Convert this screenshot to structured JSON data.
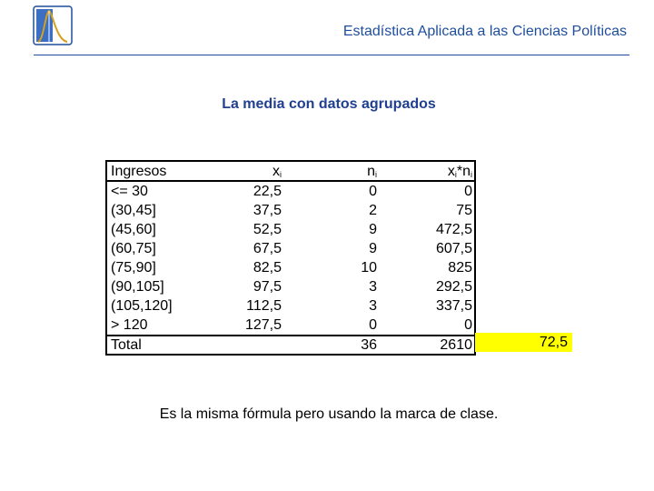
{
  "header": {
    "title": "Estadística Aplicada a las Ciencias Políticas"
  },
  "slide_title": "La media con datos agrupados",
  "table": {
    "columns": [
      [
        {
          "t": "Ingresos"
        }
      ],
      [
        {
          "t": "x"
        },
        {
          "sub": "i"
        }
      ],
      [
        {
          "t": "n"
        },
        {
          "sub": "i"
        }
      ],
      [
        {
          "t": "x"
        },
        {
          "sub": "i"
        },
        {
          "t": "*n"
        },
        {
          "sub": "i"
        }
      ]
    ],
    "rows": [
      [
        "<=  30",
        "22,5",
        "0",
        "0"
      ],
      [
        "(30,45]",
        "37,5",
        "2",
        "75"
      ],
      [
        "(45,60]",
        "52,5",
        "9",
        "472,5"
      ],
      [
        "(60,75]",
        "67,5",
        "9",
        "607,5"
      ],
      [
        "(75,90]",
        "82,5",
        "10",
        "825"
      ],
      [
        "(90,105]",
        "97,5",
        "3",
        "292,5"
      ],
      [
        "(105,120]",
        "112,5",
        "3",
        "337,5"
      ],
      [
        "> 120",
        "127,5",
        "0",
        "0"
      ]
    ],
    "total": {
      "label": "Total",
      "n": "36",
      "xn": "2610",
      "mean": "72,5"
    }
  },
  "footer_text": "Es la misma fórmula pero usando la marca de clase."
}
